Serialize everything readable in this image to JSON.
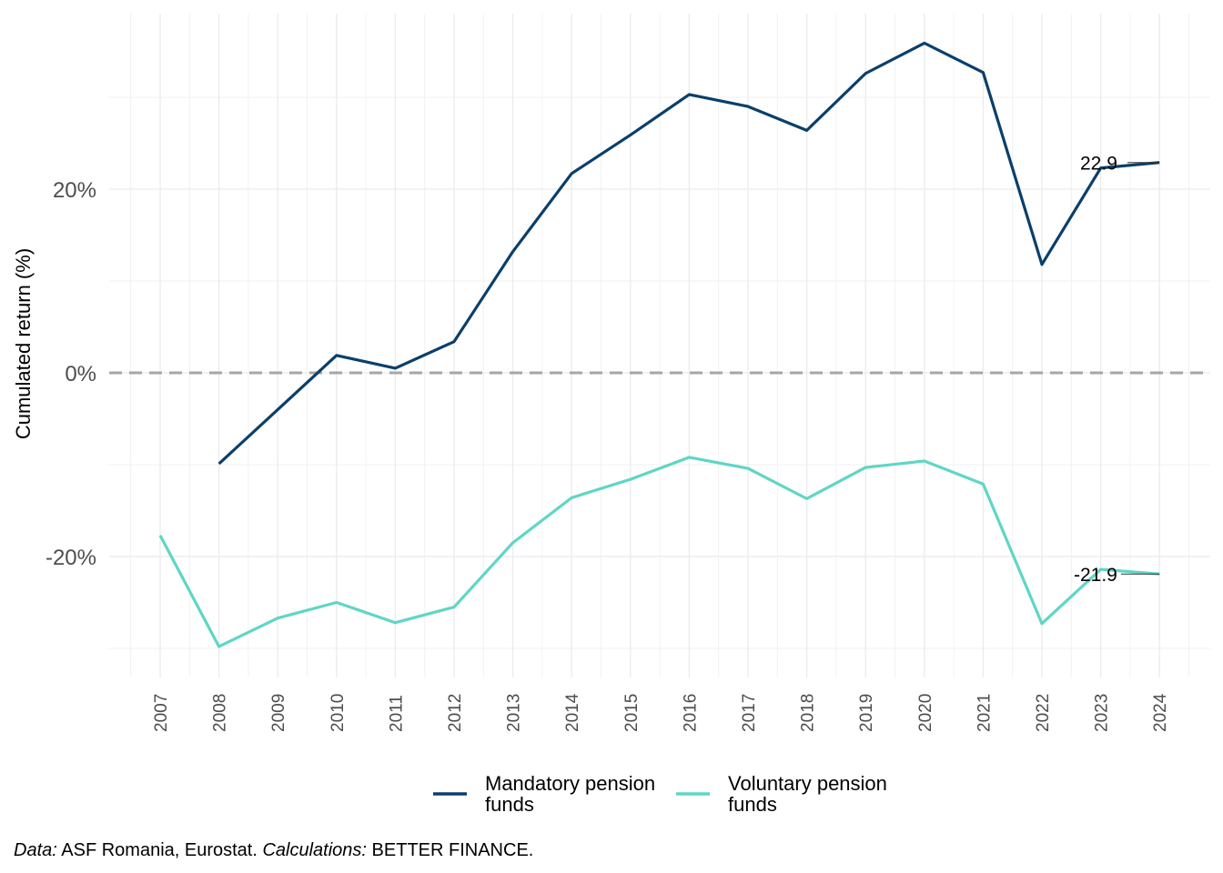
{
  "chart_data": {
    "type": "line",
    "title": "",
    "xlabel": "",
    "ylabel": "Cumulated return  (%)",
    "x": [
      2007,
      2008,
      2009,
      2010,
      2011,
      2012,
      2013,
      2014,
      2015,
      2016,
      2017,
      2018,
      2019,
      2020,
      2021,
      2022,
      2023,
      2024
    ],
    "x_tick_labels": [
      "2007",
      "2008",
      "2009",
      "2010",
      "2011",
      "2012",
      "2013",
      "2014",
      "2015",
      "2016",
      "2017",
      "2018",
      "2019",
      "2020",
      "2021",
      "2022",
      "2023",
      "2024"
    ],
    "y_ticks": [
      -20,
      0,
      20
    ],
    "y_tick_labels": [
      "-20%",
      "0%",
      "20%"
    ],
    "ylim": [
      -33,
      39
    ],
    "grid": true,
    "reference_line": {
      "y": 0,
      "style": "dashed",
      "color": "#a6a6a6"
    },
    "series": [
      {
        "name": "Mandatory pension funds",
        "legend_lines": [
          "Mandatory pension",
          "funds"
        ],
        "color": "#0b3f6b",
        "values": [
          null,
          -9.9,
          -4.0,
          1.9,
          0.5,
          3.4,
          13.2,
          21.7,
          25.9,
          30.3,
          29.0,
          26.4,
          32.6,
          35.9,
          32.7,
          11.8,
          22.3,
          22.9
        ],
        "end_label": "22.9"
      },
      {
        "name": "Voluntary pension funds",
        "legend_lines": [
          "Voluntary pension",
          "funds"
        ],
        "color": "#5fd6c6",
        "values": [
          -17.7,
          -29.8,
          -26.7,
          -25.0,
          -27.2,
          -25.5,
          -18.5,
          -13.6,
          -11.6,
          -9.2,
          -10.4,
          -13.7,
          -10.3,
          -9.6,
          -12.1,
          -27.3,
          -21.4,
          -21.9
        ],
        "end_label": "-21.9"
      }
    ],
    "legend_position": "bottom"
  },
  "caption": {
    "data_label": "Data:",
    "data_text": " ASF Romania, Eurostat. ",
    "calc_label": "Calculations:",
    "calc_text": " BETTER FINANCE."
  }
}
